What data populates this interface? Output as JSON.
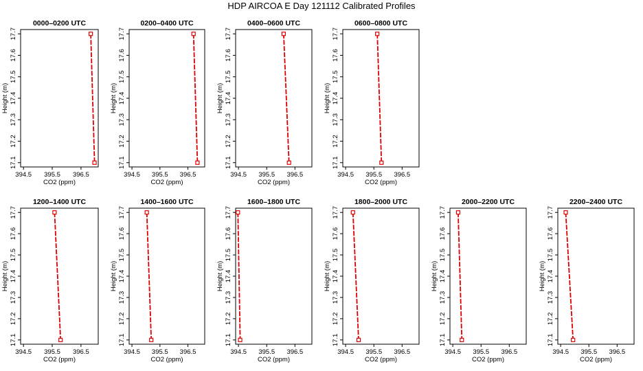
{
  "title": "HDP AIRCOA E  Day 121112  Calibrated Profiles",
  "chart_data": [
    {
      "type": "line",
      "title": "0000–0200 UTC",
      "xlabel": "CO2 (ppm)",
      "ylabel": "Height (m)",
      "xlim": [
        394.4,
        397.1
      ],
      "ylim": [
        17.08,
        17.72
      ],
      "xticks": [
        "394.5",
        "395.5",
        "396.5"
      ],
      "yticks": [
        "17.1",
        "17.2",
        "17.3",
        "17.4",
        "17.5",
        "17.6",
        "17.7"
      ],
      "x": [
        396.84,
        396.97
      ],
      "y": [
        17.7,
        17.1
      ]
    },
    {
      "type": "line",
      "title": "0200–0400 UTC",
      "xlabel": "CO2 (ppm)",
      "ylabel": "Height (m)",
      "xlim": [
        394.4,
        397.1
      ],
      "ylim": [
        17.08,
        17.72
      ],
      "xticks": [
        "394.5",
        "395.5",
        "396.5"
      ],
      "yticks": [
        "17.1",
        "17.2",
        "17.3",
        "17.4",
        "17.5",
        "17.6",
        "17.7"
      ],
      "x": [
        396.7,
        396.84
      ],
      "y": [
        17.7,
        17.1
      ]
    },
    {
      "type": "line",
      "title": "0400–0600 UTC",
      "xlabel": "CO2 (ppm)",
      "ylabel": "Height (m)",
      "xlim": [
        394.4,
        397.1
      ],
      "ylim": [
        17.08,
        17.72
      ],
      "xticks": [
        "394.5",
        "395.5",
        "396.5"
      ],
      "yticks": [
        "17.1",
        "17.2",
        "17.3",
        "17.4",
        "17.5",
        "17.6",
        "17.7"
      ],
      "x": [
        396.1,
        396.29
      ],
      "y": [
        17.7,
        17.1
      ]
    },
    {
      "type": "line",
      "title": "0600–0800 UTC",
      "xlabel": "CO2 (ppm)",
      "ylabel": "Height (m)",
      "xlim": [
        394.4,
        397.1
      ],
      "ylim": [
        17.08,
        17.72
      ],
      "xticks": [
        "394.5",
        "395.5",
        "396.5"
      ],
      "yticks": [
        "17.1",
        "17.2",
        "17.3",
        "17.4",
        "17.5",
        "17.6",
        "17.7"
      ],
      "x": [
        395.62,
        395.77
      ],
      "y": [
        17.7,
        17.1
      ]
    },
    {
      "type": "line",
      "title": "1200–1400 UTC",
      "xlabel": "CO2 (ppm)",
      "ylabel": "Height (m)",
      "xlim": [
        394.4,
        397.1
      ],
      "ylim": [
        17.08,
        17.72
      ],
      "xticks": [
        "394.5",
        "395.5",
        "396.5"
      ],
      "yticks": [
        "17.1",
        "17.2",
        "17.3",
        "17.4",
        "17.5",
        "17.6",
        "17.7"
      ],
      "x": [
        395.58,
        395.79
      ],
      "y": [
        17.7,
        17.1
      ]
    },
    {
      "type": "line",
      "title": "1400–1600 UTC",
      "xlabel": "CO2 (ppm)",
      "ylabel": "Height (m)",
      "xlim": [
        394.4,
        397.1
      ],
      "ylim": [
        17.08,
        17.72
      ],
      "xticks": [
        "394.5",
        "395.5",
        "396.5"
      ],
      "yticks": [
        "17.1",
        "17.2",
        "17.3",
        "17.4",
        "17.5",
        "17.6",
        "17.7"
      ],
      "x": [
        395.03,
        395.19
      ],
      "y": [
        17.7,
        17.1
      ]
    },
    {
      "type": "line",
      "title": "1600–1800 UTC",
      "xlabel": "CO2 (ppm)",
      "ylabel": "Height (m)",
      "xlim": [
        394.4,
        397.1
      ],
      "ylim": [
        17.08,
        17.72
      ],
      "xticks": [
        "394.5",
        "395.5",
        "396.5"
      ],
      "yticks": [
        "17.1",
        "17.2",
        "17.3",
        "17.4",
        "17.5",
        "17.6",
        "17.7"
      ],
      "x": [
        394.48,
        394.56
      ],
      "y": [
        17.7,
        17.1
      ]
    },
    {
      "type": "line",
      "title": "1800–2000 UTC",
      "xlabel": "CO2 (ppm)",
      "ylabel": "Height (m)",
      "xlim": [
        394.4,
        397.1
      ],
      "ylim": [
        17.08,
        17.72
      ],
      "xticks": [
        "394.5",
        "395.5",
        "396.5"
      ],
      "yticks": [
        "17.1",
        "17.2",
        "17.3",
        "17.4",
        "17.5",
        "17.6",
        "17.7"
      ],
      "x": [
        394.76,
        394.96
      ],
      "y": [
        17.7,
        17.1
      ]
    },
    {
      "type": "line",
      "title": "2000–2200 UTC",
      "xlabel": "CO2 (ppm)",
      "ylabel": "Height (m)",
      "xlim": [
        394.4,
        397.1
      ],
      "ylim": [
        17.08,
        17.72
      ],
      "xticks": [
        "394.5",
        "395.5",
        "396.5"
      ],
      "yticks": [
        "17.1",
        "17.2",
        "17.3",
        "17.4",
        "17.5",
        "17.6",
        "17.7"
      ],
      "x": [
        394.69,
        394.82
      ],
      "y": [
        17.7,
        17.1
      ]
    },
    {
      "type": "line",
      "title": "2200–2400 UTC",
      "xlabel": "CO2 (ppm)",
      "ylabel": "Height (m)",
      "xlim": [
        394.4,
        397.1
      ],
      "ylim": [
        17.08,
        17.72
      ],
      "xticks": [
        "394.5",
        "395.5",
        "396.5"
      ],
      "yticks": [
        "17.1",
        "17.2",
        "17.3",
        "17.4",
        "17.5",
        "17.6",
        "17.7"
      ],
      "x": [
        394.68,
        394.94
      ],
      "y": [
        17.7,
        17.1
      ]
    }
  ],
  "colors": {
    "series": "#e00000",
    "axis": "#000000"
  }
}
